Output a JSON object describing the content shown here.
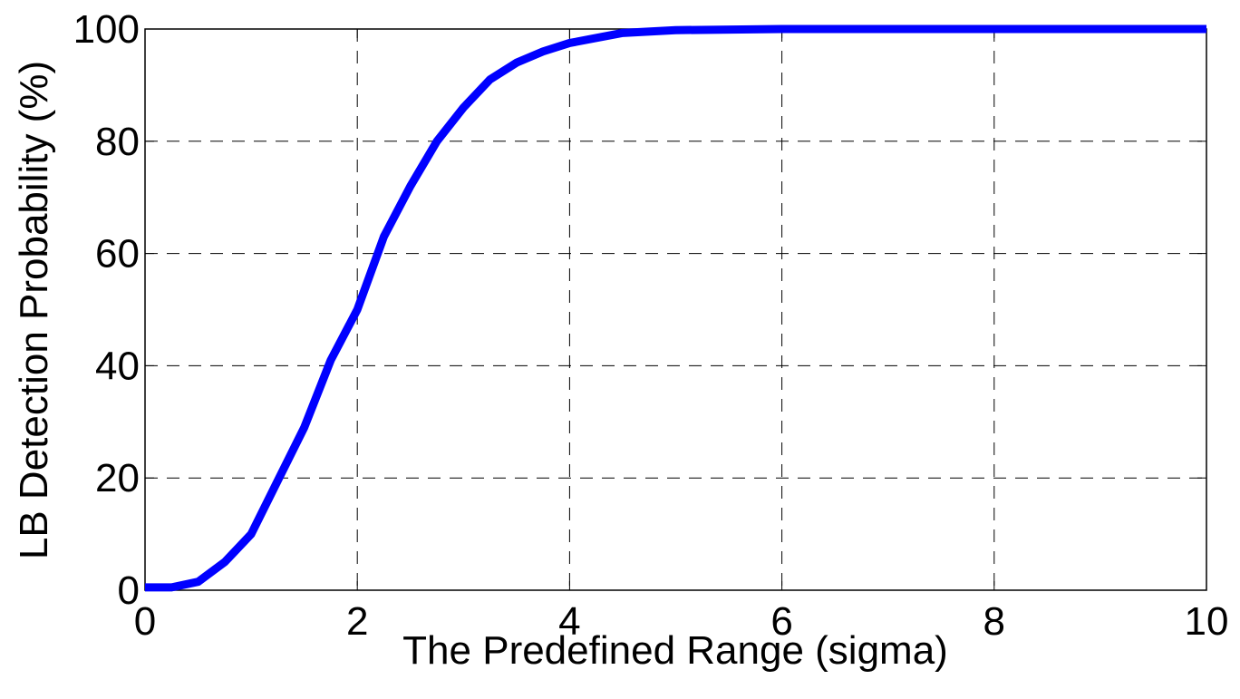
{
  "chart_data": {
    "type": "line",
    "x_label": "The Predefined Range (sigma)",
    "y_label": "LB Detection Probability (%)",
    "x": [
      0,
      0.25,
      0.5,
      0.75,
      1,
      1.25,
      1.5,
      1.75,
      2,
      2.25,
      2.5,
      2.75,
      3,
      3.25,
      3.5,
      3.75,
      4,
      4.5,
      5,
      6,
      7,
      8,
      9,
      10
    ],
    "series": [
      {
        "color": "#0000ff",
        "values": [
          0.5,
          0.5,
          1.5,
          5,
          10,
          19.5,
          29,
          41,
          50,
          63,
          72,
          80,
          86,
          91,
          94,
          96,
          97.5,
          99.3,
          99.8,
          100,
          100,
          100,
          100,
          100
        ]
      }
    ],
    "xlim": [
      0,
      10
    ],
    "xticks": [
      0,
      2,
      4,
      6,
      8,
      10
    ],
    "ylim": [
      0,
      100
    ],
    "yticks": [
      0,
      20,
      40,
      60,
      80,
      100
    ],
    "grid": true
  }
}
